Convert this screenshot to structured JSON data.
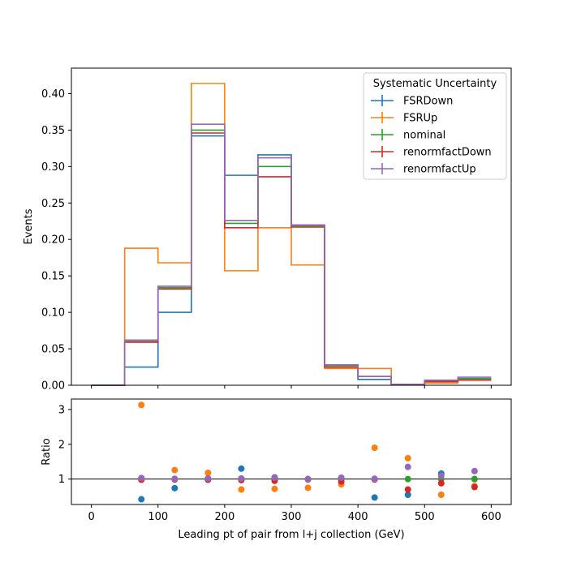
{
  "chart_data": [
    {
      "type": "line",
      "drawstyle": "step",
      "bin_edges": [
        0,
        50,
        100,
        150,
        200,
        250,
        300,
        350,
        400,
        450,
        500,
        550,
        600
      ],
      "xlim": [
        -30,
        630
      ],
      "ylim": [
        0,
        0.435
      ],
      "ylabel": "Events",
      "x_ticks": [
        0,
        100,
        200,
        300,
        400,
        500,
        600
      ],
      "x_tick_labels": [
        "0",
        "100",
        "200",
        "300",
        "400",
        "500",
        "600"
      ],
      "y_ticks": [
        0,
        0.05,
        0.1,
        0.15,
        0.2,
        0.25,
        0.3,
        0.35,
        0.4
      ],
      "y_tick_labels": [
        "0.00",
        "0.05",
        "0.10",
        "0.15",
        "0.20",
        "0.25",
        "0.30",
        "0.35",
        "0.40"
      ],
      "legend": {
        "title": "Systematic Uncertainty",
        "placement": "top-right"
      },
      "series": [
        {
          "name": "FSRDown",
          "color": "#1f77b4",
          "values": [
            0.0,
            0.025,
            0.1,
            0.342,
            0.288,
            0.316,
            0.22,
            0.028,
            0.008,
            0.001,
            0.005,
            0.009
          ]
        },
        {
          "name": "FSRUp",
          "color": "#ff7f0e",
          "values": [
            0.0,
            0.188,
            0.168,
            0.414,
            0.157,
            0.216,
            0.165,
            0.023,
            0.023,
            0.001,
            0.003,
            0.007
          ]
        },
        {
          "name": "nominal",
          "color": "#2ca02c",
          "values": [
            0.0,
            0.06,
            0.134,
            0.35,
            0.222,
            0.3,
            0.219,
            0.027,
            0.012,
            0.001,
            0.006,
            0.009
          ]
        },
        {
          "name": "renormfactDown",
          "color": "#d62728",
          "values": [
            0.0,
            0.059,
            0.132,
            0.346,
            0.216,
            0.286,
            0.217,
            0.025,
            0.012,
            0.001,
            0.005,
            0.007
          ]
        },
        {
          "name": "renormfactUp",
          "color": "#9467bd",
          "values": [
            0.0,
            0.062,
            0.136,
            0.358,
            0.226,
            0.312,
            0.22,
            0.028,
            0.012,
            0.001,
            0.007,
            0.011
          ]
        }
      ]
    },
    {
      "type": "scatter",
      "xlim": [
        -30,
        630
      ],
      "ylim": [
        0.27,
        3.3
      ],
      "ylabel": "Ratio",
      "xlabel": "Leading pt of pair from l+j collection (GeV)",
      "reference_line": 1,
      "x_ticks": [
        0,
        100,
        200,
        300,
        400,
        500,
        600
      ],
      "x_tick_labels": [
        "0",
        "100",
        "200",
        "300",
        "400",
        "500",
        "600"
      ],
      "y_ticks": [
        1,
        2,
        3
      ],
      "y_tick_labels": [
        "1",
        "2",
        "3"
      ],
      "x": [
        75,
        125,
        175,
        225,
        275,
        325,
        375,
        425,
        475,
        525,
        575
      ],
      "series": [
        {
          "name": "FSRDown",
          "color": "#1f77b4",
          "values": [
            0.42,
            0.74,
            0.98,
            1.3,
            1.05,
            1.0,
            1.03,
            0.47,
            0.55,
            1.16,
            1.0
          ]
        },
        {
          "name": "FSRUp",
          "color": "#ff7f0e",
          "values": [
            3.13,
            1.26,
            1.18,
            0.7,
            0.72,
            0.75,
            0.85,
            1.9,
            1.6,
            0.55,
            0.8
          ]
        },
        {
          "name": "nominal",
          "color": "#2ca02c",
          "values": [
            1.0,
            1.0,
            1.0,
            1.0,
            1.0,
            1.0,
            1.0,
            1.0,
            1.0,
            1.0,
            1.0
          ]
        },
        {
          "name": "renormfactDown",
          "color": "#d62728",
          "values": [
            0.98,
            0.99,
            0.99,
            0.97,
            0.95,
            0.99,
            0.93,
            0.99,
            0.7,
            0.88,
            0.77
          ]
        },
        {
          "name": "renormfactUp",
          "color": "#9467bd",
          "values": [
            1.03,
            1.01,
            1.02,
            1.02,
            1.04,
            1.0,
            1.04,
            1.01,
            1.35,
            1.1,
            1.23
          ]
        }
      ]
    }
  ]
}
